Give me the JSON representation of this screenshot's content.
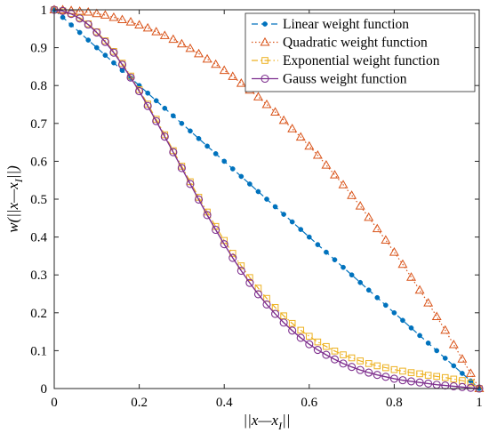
{
  "chart_data": {
    "type": "line",
    "title": "",
    "xlabel": {
      "pre": "||x—x",
      "sub": "I",
      "post": "||"
    },
    "ylabel": {
      "pre": "w(||x—x",
      "sub": "I",
      "post": "||)"
    },
    "xlim": [
      0,
      1
    ],
    "ylim": [
      0,
      1
    ],
    "xticks": [
      0,
      0.2,
      0.4,
      0.6,
      0.8,
      1
    ],
    "xtick_labels": [
      "0",
      "0.2",
      "0.4",
      "0.6",
      "0.8",
      "1"
    ],
    "yticks": [
      0,
      0.1,
      0.2,
      0.3,
      0.4,
      0.5,
      0.6,
      0.7,
      0.8,
      0.9,
      1
    ],
    "ytick_labels": [
      "0",
      "0.1",
      "0.2",
      "0.3",
      "0.4",
      "0.5",
      "0.6",
      "0.7",
      "0.8",
      "0.9",
      "1"
    ],
    "grid": false,
    "legend_position": "top-right",
    "x": [
      0,
      0.02,
      0.04,
      0.06,
      0.08,
      0.1,
      0.12,
      0.14,
      0.16,
      0.18,
      0.2,
      0.22,
      0.24,
      0.26,
      0.28,
      0.3,
      0.32,
      0.34,
      0.36,
      0.38,
      0.4,
      0.42,
      0.44,
      0.46,
      0.48,
      0.5,
      0.52,
      0.54,
      0.56,
      0.58,
      0.6,
      0.62,
      0.64,
      0.66,
      0.68,
      0.7,
      0.72,
      0.74,
      0.76,
      0.78,
      0.8,
      0.82,
      0.84,
      0.86,
      0.88,
      0.9,
      0.92,
      0.94,
      0.96,
      0.98,
      1
    ],
    "series": [
      {
        "name": "Linear weight function",
        "color": "#0072BD",
        "line_style": "dashed",
        "marker": "dot",
        "values": [
          1.0,
          0.98,
          0.96,
          0.94,
          0.92,
          0.9,
          0.88,
          0.86,
          0.84,
          0.82,
          0.8,
          0.78,
          0.76,
          0.74,
          0.72,
          0.7,
          0.68,
          0.66,
          0.64,
          0.62,
          0.6,
          0.58,
          0.56,
          0.54,
          0.52,
          0.5,
          0.48,
          0.46,
          0.44,
          0.42,
          0.4,
          0.38,
          0.36,
          0.34,
          0.32,
          0.3,
          0.28,
          0.26,
          0.24,
          0.22,
          0.2,
          0.18,
          0.16,
          0.14,
          0.12,
          0.1,
          0.08,
          0.06,
          0.04,
          0.02,
          0.0
        ]
      },
      {
        "name": "Quadratic weight function",
        "color": "#D95319",
        "line_style": "dotted",
        "marker": "triangle",
        "values": [
          1.0,
          1.0,
          0.998,
          0.996,
          0.994,
          0.99,
          0.986,
          0.98,
          0.974,
          0.968,
          0.96,
          0.952,
          0.942,
          0.932,
          0.922,
          0.91,
          0.898,
          0.884,
          0.87,
          0.856,
          0.84,
          0.824,
          0.806,
          0.788,
          0.77,
          0.75,
          0.73,
          0.708,
          0.686,
          0.664,
          0.64,
          0.616,
          0.59,
          0.564,
          0.538,
          0.51,
          0.482,
          0.452,
          0.422,
          0.392,
          0.36,
          0.328,
          0.294,
          0.26,
          0.226,
          0.19,
          0.154,
          0.116,
          0.078,
          0.04,
          0.0
        ]
      },
      {
        "name": "Exponential weight function",
        "color": "#EDB120",
        "line_style": "dashdot",
        "marker": "square",
        "values": [
          1.0,
          0.997,
          0.99,
          0.979,
          0.963,
          0.942,
          0.918,
          0.89,
          0.859,
          0.825,
          0.789,
          0.751,
          0.711,
          0.67,
          0.628,
          0.587,
          0.546,
          0.505,
          0.466,
          0.428,
          0.391,
          0.357,
          0.324,
          0.293,
          0.265,
          0.238,
          0.214,
          0.192,
          0.172,
          0.154,
          0.138,
          0.123,
          0.111,
          0.099,
          0.089,
          0.081,
          0.073,
          0.066,
          0.06,
          0.055,
          0.05,
          0.046,
          0.042,
          0.039,
          0.035,
          0.032,
          0.029,
          0.025,
          0.021,
          0.015,
          0.0
        ]
      },
      {
        "name": "Gauss weight function",
        "color": "#7E2F8E",
        "line_style": "solid",
        "marker": "circle",
        "values": [
          1.0,
          0.997,
          0.989,
          0.977,
          0.961,
          0.94,
          0.915,
          0.887,
          0.855,
          0.821,
          0.785,
          0.746,
          0.706,
          0.665,
          0.624,
          0.582,
          0.54,
          0.499,
          0.458,
          0.419,
          0.381,
          0.345,
          0.311,
          0.279,
          0.249,
          0.222,
          0.197,
          0.174,
          0.153,
          0.134,
          0.117,
          0.102,
          0.089,
          0.077,
          0.066,
          0.057,
          0.049,
          0.042,
          0.036,
          0.031,
          0.026,
          0.022,
          0.019,
          0.016,
          0.013,
          0.01,
          0.008,
          0.006,
          0.004,
          0.002,
          0.0
        ]
      }
    ]
  }
}
